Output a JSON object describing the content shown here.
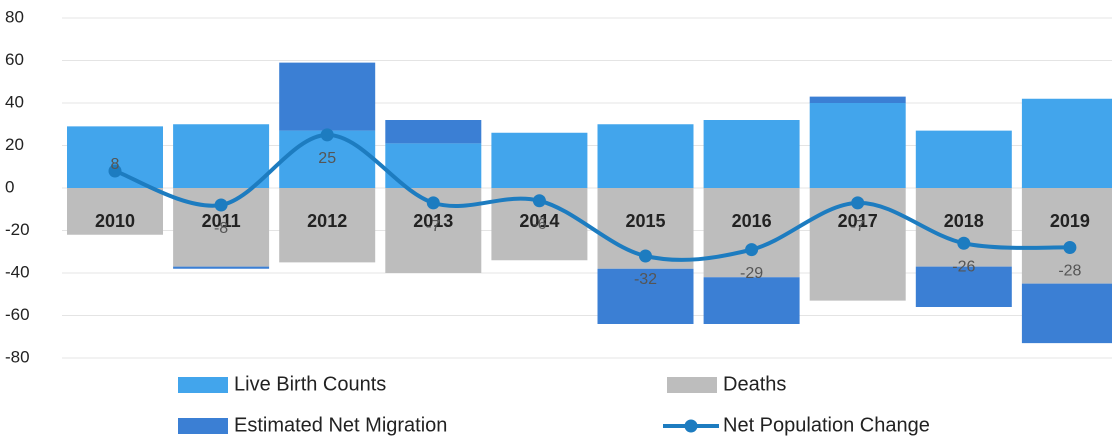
{
  "chart_data": {
    "type": "bar-line",
    "categories": [
      "2010",
      "2011",
      "2012",
      "2013",
      "2014",
      "2015",
      "2016",
      "2017",
      "2018",
      "2019"
    ],
    "series": [
      {
        "name": "Live Birth Counts",
        "color": "#42a5ec",
        "type": "bar",
        "values": [
          29,
          30,
          27,
          21,
          26,
          30,
          32,
          40,
          27,
          42
        ]
      },
      {
        "name": "Deaths",
        "color": "#bdbdbd",
        "type": "bar",
        "values": [
          -22,
          -37,
          -35,
          -40,
          -34,
          -38,
          -42,
          -53,
          -37,
          -45
        ]
      },
      {
        "name": "Estimated Net Migration",
        "color": "#3b7fd4",
        "type": "bar",
        "values": [
          0,
          -1,
          32,
          11,
          0,
          -26,
          -22,
          3,
          -19,
          -28
        ]
      },
      {
        "name": "Net Population Change",
        "color": "#1d7cc0",
        "type": "line",
        "values": [
          8,
          -8,
          25,
          -7,
          -6,
          -32,
          -29,
          -7,
          -26,
          -28
        ]
      }
    ],
    "ylim": [
      -80,
      80
    ],
    "yticks": [
      -80,
      -60,
      -40,
      -20,
      0,
      20,
      40,
      60,
      80
    ],
    "grid": true
  }
}
